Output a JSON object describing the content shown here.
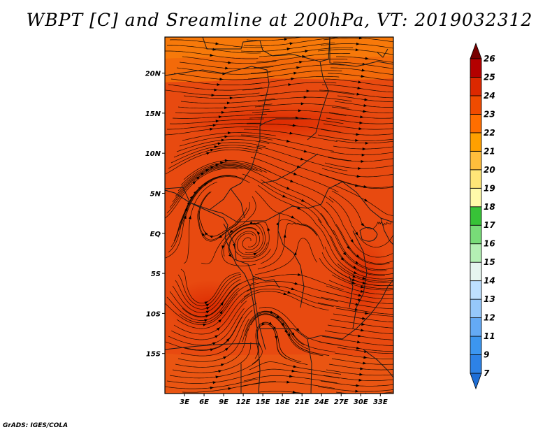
{
  "title": "WBPT [C] and Sreamline at 200hPa, VT: 2019032312",
  "credit": "GrADS: IGES/COLA",
  "map": {
    "lon_range": [
      0,
      35
    ],
    "lat_range": [
      -20,
      24.5
    ],
    "lat_ticks": [
      {
        "value": 20,
        "label": "20N"
      },
      {
        "value": 15,
        "label": "15N"
      },
      {
        "value": 10,
        "label": "10N"
      },
      {
        "value": 5,
        "label": "5N"
      },
      {
        "value": 0,
        "label": "EQ"
      },
      {
        "value": -5,
        "label": "5S"
      },
      {
        "value": -10,
        "label": "10S"
      },
      {
        "value": -15,
        "label": "15S"
      }
    ],
    "lon_ticks": [
      {
        "value": 3,
        "label": "3E"
      },
      {
        "value": 6,
        "label": "6E"
      },
      {
        "value": 9,
        "label": "9E"
      },
      {
        "value": 12,
        "label": "12E"
      },
      {
        "value": 15,
        "label": "15E"
      },
      {
        "value": 18,
        "label": "18E"
      },
      {
        "value": 21,
        "label": "21E"
      },
      {
        "value": 24,
        "label": "24E"
      },
      {
        "value": 27,
        "label": "27E"
      },
      {
        "value": 30,
        "label": "30E"
      },
      {
        "value": 33,
        "label": "33E"
      }
    ]
  },
  "colorbar": {
    "labels": [
      "7",
      "9",
      "11",
      "12",
      "13",
      "14",
      "15",
      "16",
      "17",
      "18",
      "19",
      "20",
      "21",
      "22",
      "23",
      "24",
      "25",
      "26"
    ],
    "colors": [
      "#1e6ed6",
      "#2d82e6",
      "#3c96f0",
      "#64aaf5",
      "#96c8fa",
      "#bee0ff",
      "#e6f5f0",
      "#b4f0b4",
      "#78dc78",
      "#37c337",
      "#fffaaa",
      "#ffe678",
      "#ffbe3c",
      "#ffa000",
      "#ff6e00",
      "#f04b00",
      "#dc2800",
      "#b40000",
      "#780000"
    ]
  },
  "chart_data": {
    "type": "heatmap",
    "title": "WBPT [C] and Sreamline at 200hPa, VT: 2019032312",
    "variable": "Wet-bulb potential temperature (C) with 200hPa streamlines",
    "valid_time": "2019032312",
    "x_range_deg_east": [
      0,
      35
    ],
    "y_range_deg_north": [
      -20,
      24.5
    ],
    "dominant_values_C": [
      23,
      24
    ],
    "colorbar_levels": [
      7,
      9,
      11,
      12,
      13,
      14,
      15,
      16,
      17,
      18,
      19,
      20,
      21,
      22,
      23,
      24,
      25,
      26
    ],
    "xlabel": "",
    "ylabel": ""
  }
}
